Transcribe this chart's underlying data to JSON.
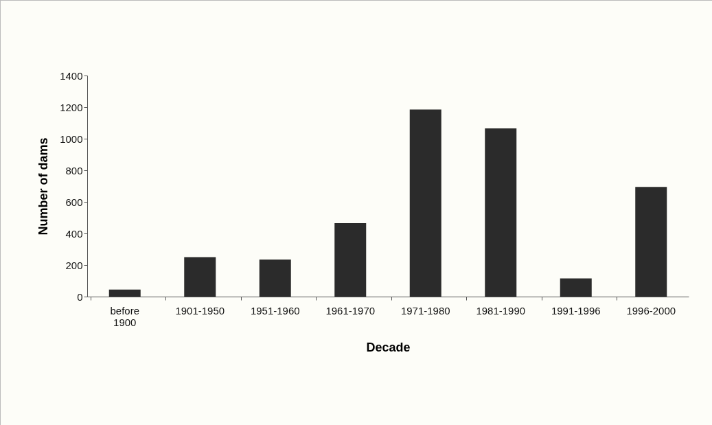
{
  "chart_data": {
    "type": "bar",
    "xlabel": "Decade",
    "ylabel": "Number of dams",
    "categories": [
      "before 1900",
      "1901-1950",
      "1951-1960",
      "1961-1970",
      "1971-1980",
      "1981-1990",
      "1991-1996",
      "1996-2000"
    ],
    "values": [
      45,
      250,
      235,
      465,
      1185,
      1065,
      115,
      695
    ],
    "color": "#2b2b2b",
    "ylim": [
      0,
      1400
    ],
    "yticks": [
      0,
      200,
      400,
      600,
      800,
      1000,
      1200,
      1400
    ],
    "grid": false
  }
}
